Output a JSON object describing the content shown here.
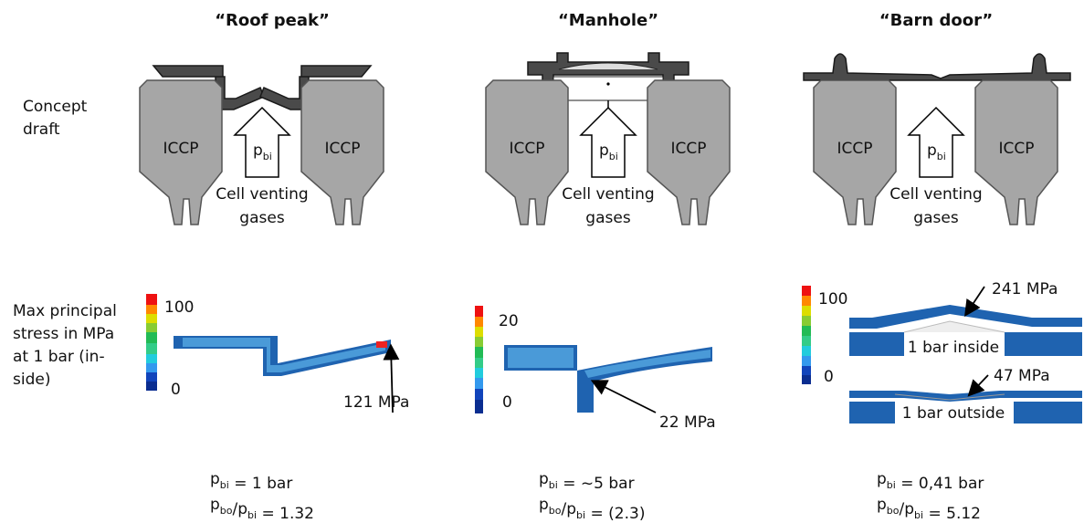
{
  "row_labels": {
    "concept": [
      "Concept",
      "draft"
    ],
    "stress": [
      "Max principal",
      "stress in MPa",
      "at 1 bar (in-",
      "side)"
    ]
  },
  "columns": [
    {
      "title": "“Roof peak”",
      "concept": {
        "iccp_left": "ICCP",
        "iccp_right": "ICCP",
        "pressure": {
          "symbol": "p",
          "subscript": "bi"
        },
        "gas_label": [
          "Cell venting",
          "gases"
        ]
      },
      "stress": {
        "scale_max": "100",
        "scale_min": "0",
        "annotations": [
          "121 MPa"
        ]
      },
      "pressure_line": {
        "symbol": "p",
        "subscript": "bi",
        "text": " = 1 bar"
      },
      "ratio_line": {
        "symbol": "p",
        "subscript": "bo",
        "separator": "/p",
        "subscript2": "bi",
        "text": " = 1.32"
      }
    },
    {
      "title": "“Manhole”",
      "concept": {
        "iccp_left": "ICCP",
        "iccp_right": "ICCP",
        "pressure": {
          "symbol": "p",
          "subscript": "bi"
        },
        "gas_label": [
          "Cell venting",
          "gases"
        ]
      },
      "stress": {
        "scale_max": "20",
        "scale_min": "0",
        "annotations": [
          "22 MPa"
        ]
      },
      "pressure_line": {
        "symbol": "p",
        "subscript": "bi",
        "text": " = ~5 bar"
      },
      "ratio_line": {
        "symbol": "p",
        "subscript": "bo",
        "separator": "/p",
        "subscript2": "bi",
        "text": " = (2.3)"
      }
    },
    {
      "title": "“Barn door”",
      "concept": {
        "iccp_left": "ICCP",
        "iccp_right": "ICCP",
        "pressure": {
          "symbol": "p",
          "subscript": "bi"
        },
        "gas_label": [
          "Cell venting",
          "gases"
        ]
      },
      "stress": {
        "scale_max": "100",
        "scale_min": "0",
        "annotations": [
          "241 MPa",
          "1 bar inside",
          "47 MPa",
          "1 bar outside"
        ]
      },
      "pressure_line": {
        "symbol": "p",
        "subscript": "bi",
        "text": " = 0,41 bar"
      },
      "ratio_line": {
        "symbol": "p",
        "subscript": "bo",
        "separator": "/p",
        "subscript2": "bi",
        "text": " = 5.12"
      }
    }
  ]
}
